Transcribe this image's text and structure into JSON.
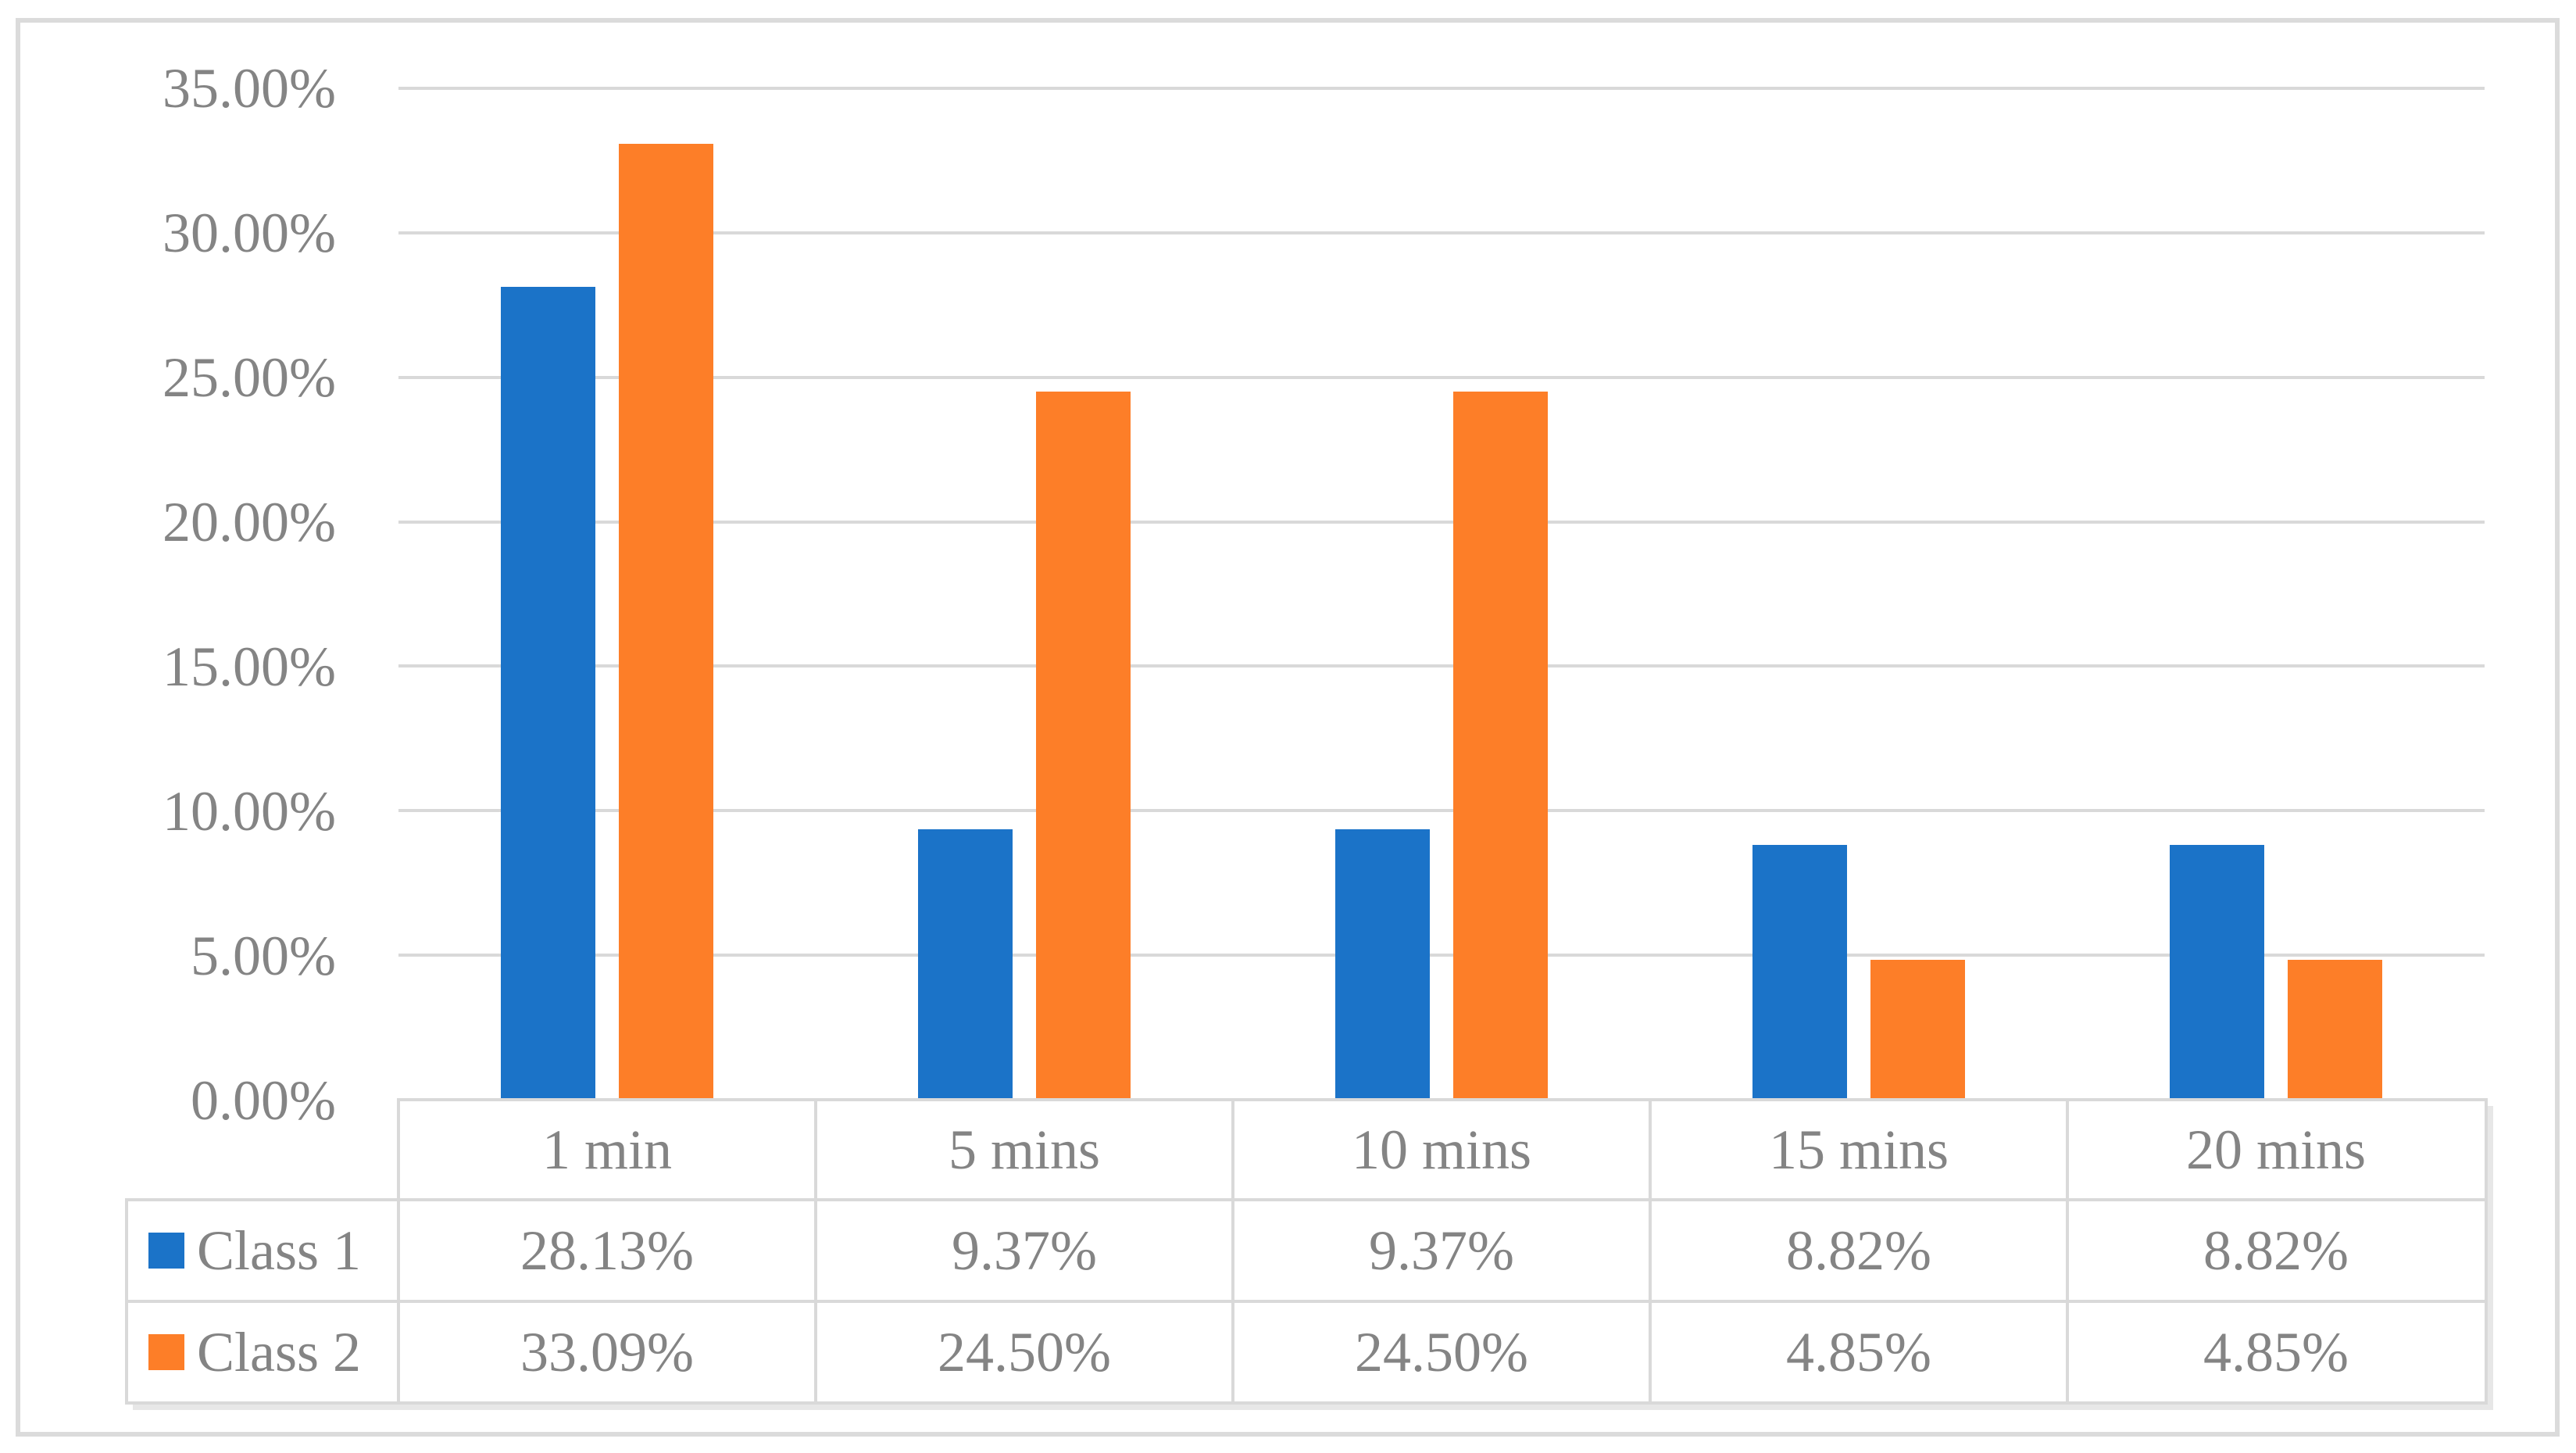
{
  "chart_data": {
    "type": "bar",
    "title": "",
    "xlabel": "",
    "ylabel": "",
    "categories": [
      "1 min",
      "5 mins",
      "10 mins",
      "15 mins",
      "20 mins"
    ],
    "series": [
      {
        "name": "Class 1",
        "color": "#1B73C8",
        "values": [
          28.13,
          9.37,
          9.37,
          8.82,
          8.82
        ],
        "labels": [
          "28.13%",
          "9.37%",
          "9.37%",
          "8.82%",
          "8.82%"
        ]
      },
      {
        "name": "Class 2",
        "color": "#FD7E28",
        "values": [
          33.09,
          24.5,
          24.5,
          4.85,
          4.85
        ],
        "labels": [
          "33.09%",
          "24.50%",
          "24.50%",
          "4.85%",
          "4.85%"
        ]
      }
    ],
    "ylim": [
      0,
      35
    ],
    "y_tick_step": 5,
    "y_ticks": [
      "35.00%",
      "30.00%",
      "25.00%",
      "20.00%",
      "15.00%",
      "10.00%",
      "5.00%",
      "0.00%"
    ],
    "grid": true,
    "legend_position": "data-table-left",
    "data_table_shown": true
  },
  "colors": {
    "grid": "#D9D9D9",
    "frame": "#DBDBDB",
    "text": "#848484",
    "background": "#FFFFFF"
  }
}
